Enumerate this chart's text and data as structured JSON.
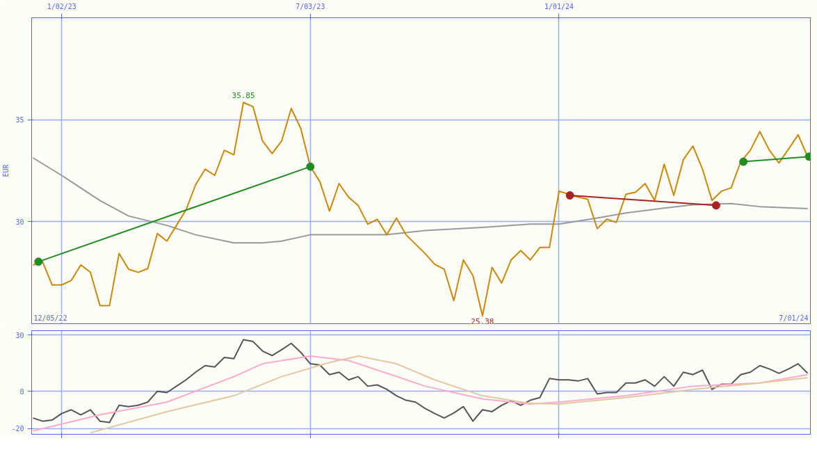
{
  "chart_data": [
    {
      "type": "line",
      "ylabel": "EUR",
      "xlim": [
        "2022-12-11",
        "2024-07-03"
      ],
      "ylim": [
        25,
        40
      ],
      "yticks": [
        35,
        30
      ],
      "xticks": [
        {
          "value": "2023-01-02",
          "label": "1/02/23"
        },
        {
          "value": "2023-07-03",
          "label": "7/03/23"
        },
        {
          "value": "2024-01-01",
          "label": "1/01/24"
        }
      ],
      "grid": true,
      "line_style": "solid",
      "x": [
        "2022-12-12",
        "2022-12-19",
        "2022-12-26",
        "2023-01-02",
        "2023-01-09",
        "2023-01-16",
        "2023-01-23",
        "2023-01-30",
        "2023-02-06",
        "2023-02-13",
        "2023-02-20",
        "2023-02-27",
        "2023-03-06",
        "2023-03-13",
        "2023-03-20",
        "2023-03-27",
        "2023-04-03",
        "2023-04-10",
        "2023-04-17",
        "2023-04-24",
        "2023-05-01",
        "2023-05-08",
        "2023-05-15",
        "2023-05-22",
        "2023-05-29",
        "2023-06-05",
        "2023-06-12",
        "2023-06-19",
        "2023-06-26",
        "2023-07-03",
        "2023-07-10",
        "2023-07-17",
        "2023-07-24",
        "2023-07-31",
        "2023-08-07",
        "2023-08-14",
        "2023-08-21",
        "2023-08-28",
        "2023-09-04",
        "2023-09-11",
        "2023-09-18",
        "2023-09-25",
        "2023-10-02",
        "2023-10-09",
        "2023-10-16",
        "2023-10-23",
        "2023-10-30",
        "2023-11-06",
        "2023-11-13",
        "2023-11-20",
        "2023-11-27",
        "2023-12-04",
        "2023-12-11",
        "2023-12-18",
        "2023-12-25",
        "2024-01-01",
        "2024-01-08",
        "2024-01-15",
        "2024-01-22",
        "2024-01-29",
        "2024-02-05",
        "2024-02-12",
        "2024-02-19",
        "2024-02-26",
        "2024-03-04",
        "2024-03-11",
        "2024-03-18",
        "2024-03-25",
        "2024-04-01",
        "2024-04-08",
        "2024-04-15",
        "2024-04-22",
        "2024-04-29",
        "2024-05-06",
        "2024-05-13",
        "2024-05-20",
        "2024-05-27",
        "2024-06-03",
        "2024-06-10",
        "2024-06-17",
        "2024-06-24",
        "2024-07-01"
      ],
      "annotations": [
        "12/05/22",
        "7/01/24",
        {
          "text": "35.85",
          "x": "2023-05-15",
          "y": 35.85
        },
        {
          "text": "25.38",
          "x": "2023-11-06",
          "y": 25.38
        }
      ],
      "series": [
        {
          "color": "#999999",
          "x": [
            "2022-12-12",
            "2023-01-02",
            "2023-01-30",
            "2023-02-20",
            "2023-03-20",
            "2023-04-10",
            "2023-05-08",
            "2023-05-29",
            "2023-06-12",
            "2023-07-03",
            "2023-07-31",
            "2023-08-28",
            "2023-09-25",
            "2023-11-06",
            "2023-12-11",
            "2024-01-01",
            "2024-01-29",
            "2024-02-19",
            "2024-03-18",
            "2024-04-08",
            "2024-05-06",
            "2024-05-27",
            "2024-07-01"
          ],
          "values": [
            33.13,
            32.27,
            31.04,
            30.28,
            29.82,
            29.36,
            28.96,
            28.96,
            29.05,
            29.36,
            29.36,
            29.36,
            29.57,
            29.72,
            29.88,
            29.88,
            30.18,
            30.43,
            30.67,
            30.83,
            30.89,
            30.74,
            30.64
          ]
        },
        {
          "color": "#cc8800",
          "values": [
            27.88,
            28.04,
            26.9,
            26.9,
            27.12,
            27.88,
            27.52,
            25.89,
            25.89,
            28.44,
            27.67,
            27.52,
            27.7,
            29.42,
            29.05,
            29.82,
            30.58,
            31.81,
            32.58,
            32.27,
            33.5,
            33.28,
            35.85,
            35.64,
            33.96,
            33.34,
            33.96,
            35.55,
            34.57,
            32.7,
            31.96,
            30.52,
            31.87,
            31.2,
            30.8,
            29.88,
            30.12,
            29.36,
            30.18,
            29.36,
            28.9,
            28.44,
            27.91,
            27.67,
            26.13,
            28.13,
            27.36,
            25.38,
            27.76,
            26.99,
            28.13,
            28.59,
            28.13,
            28.74,
            28.74,
            31.5,
            31.35,
            31.2,
            31.1,
            29.66,
            30.12,
            29.97,
            31.35,
            31.44,
            31.87,
            31.04,
            32.82,
            31.29,
            33.04,
            33.71,
            32.58,
            31.04,
            31.5,
            31.66,
            32.94,
            33.5,
            34.42,
            33.5,
            32.88,
            33.56,
            34.26,
            33.19
          ]
        },
        {
          "color": "#228b22",
          "marker": "circle",
          "x": [
            "2022-12-16",
            "2023-07-03"
          ],
          "values": [
            28.04,
            32.7
          ]
        },
        {
          "color": "#aa2222",
          "marker": "circle",
          "x": [
            "2024-01-09",
            "2024-04-25"
          ],
          "values": [
            31.29,
            30.8
          ]
        },
        {
          "color": "#228b22",
          "marker": "circle",
          "x": [
            "2024-05-15",
            "2024-07-02"
          ],
          "values": [
            32.94,
            33.19
          ]
        }
      ]
    },
    {
      "type": "line",
      "xlim": [
        "2022-12-11",
        "2024-07-03"
      ],
      "ylim": [
        -23,
        32.4
      ],
      "yticks": [
        30,
        0,
        -20
      ],
      "xticks": [
        {
          "value": "2023-01-02",
          "label": null
        },
        {
          "value": "2023-07-03",
          "label": null
        },
        {
          "value": "2024-01-01",
          "label": null
        }
      ],
      "grid": true,
      "tick_labels": "y",
      "line_style": "solid",
      "x": [
        "2022-12-12",
        "2022-12-19",
        "2022-12-26",
        "2023-01-02",
        "2023-01-09",
        "2023-01-16",
        "2023-01-23",
        "2023-01-30",
        "2023-02-06",
        "2023-02-13",
        "2023-02-20",
        "2023-02-27",
        "2023-03-06",
        "2023-03-13",
        "2023-03-20",
        "2023-03-27",
        "2023-04-03",
        "2023-04-10",
        "2023-04-17",
        "2023-04-24",
        "2023-05-01",
        "2023-05-08",
        "2023-05-15",
        "2023-05-22",
        "2023-05-29",
        "2023-06-05",
        "2023-06-12",
        "2023-06-19",
        "2023-06-26",
        "2023-07-03",
        "2023-07-10",
        "2023-07-17",
        "2023-07-24",
        "2023-07-31",
        "2023-08-07",
        "2023-08-14",
        "2023-08-21",
        "2023-08-28",
        "2023-09-04",
        "2023-09-11",
        "2023-09-18",
        "2023-09-25",
        "2023-10-02",
        "2023-10-09",
        "2023-10-16",
        "2023-10-23",
        "2023-10-30",
        "2023-11-06",
        "2023-11-13",
        "2023-11-20",
        "2023-11-27",
        "2023-12-04",
        "2023-12-11",
        "2023-12-18",
        "2023-12-25",
        "2024-01-01",
        "2024-01-08",
        "2024-01-15",
        "2024-01-22",
        "2024-01-29",
        "2024-02-05",
        "2024-02-12",
        "2024-02-19",
        "2024-02-26",
        "2024-03-04",
        "2024-03-11",
        "2024-03-18",
        "2024-03-25",
        "2024-04-01",
        "2024-04-08",
        "2024-04-15",
        "2024-04-22",
        "2024-04-29",
        "2024-05-06",
        "2024-05-13",
        "2024-05-20",
        "2024-05-27",
        "2024-06-03",
        "2024-06-10",
        "2024-06-17",
        "2024-06-24",
        "2024-07-01"
      ],
      "series": [
        {
          "color": "#555555",
          "values": [
            -14.3,
            -16.0,
            -15.4,
            -11.9,
            -9.9,
            -12.6,
            -9.9,
            -16.0,
            -16.7,
            -7.5,
            -8.2,
            -7.5,
            -5.8,
            0,
            -0.7,
            2.7,
            6.1,
            10.2,
            13.7,
            13.0,
            18.1,
            17.4,
            27.6,
            26.6,
            21.5,
            19.1,
            22.2,
            25.6,
            20.8,
            14.7,
            14.0,
            8.9,
            10.2,
            6.1,
            7.8,
            2.7,
            3.4,
            1.0,
            -2.4,
            -4.8,
            -5.8,
            -9.2,
            -11.9,
            -14.3,
            -11.6,
            -8.2,
            -16.0,
            -9.9,
            -10.9,
            -7.5,
            -5.1,
            -7.5,
            -4.8,
            -3.4,
            6.8,
            6.1,
            6.1,
            5.5,
            6.8,
            -1.4,
            -0.7,
            -0.7,
            4.4,
            4.4,
            6.1,
            2.7,
            7.8,
            2.7,
            10.2,
            8.9,
            11.3,
            1.0,
            3.8,
            3.8,
            8.9,
            10.2,
            13.7,
            11.9,
            9.6,
            11.9,
            14.7,
            9.6
          ]
        },
        {
          "color": "#ffaacc",
          "x": [
            "2022-12-12",
            "2023-01-30",
            "2023-03-20",
            "2023-05-08",
            "2023-05-29",
            "2023-07-03",
            "2023-07-31",
            "2023-08-28",
            "2023-09-25",
            "2023-11-06",
            "2023-12-11",
            "2024-01-01",
            "2024-02-19",
            "2024-04-08",
            "2024-05-27",
            "2024-07-01"
          ],
          "values": [
            -21.2,
            -12.6,
            -5.8,
            7.8,
            14.7,
            18.8,
            16.4,
            9.6,
            2.7,
            -4.1,
            -6.8,
            -5.8,
            -2.4,
            2.7,
            4.4,
            8.9
          ]
        },
        {
          "color": "#e0c8a0",
          "x": [
            "2023-01-23",
            "2023-03-20",
            "2023-05-08",
            "2023-06-12",
            "2023-07-17",
            "2023-08-07",
            "2023-09-04",
            "2023-10-02",
            "2023-11-06",
            "2023-12-11",
            "2024-01-01",
            "2024-02-19",
            "2024-04-08",
            "2024-05-27",
            "2024-07-01"
          ],
          "values": [
            -22.2,
            -10.9,
            -2.4,
            7.8,
            15.4,
            18.8,
            14.7,
            6.1,
            -2.4,
            -6.5,
            -6.8,
            -3.4,
            1.0,
            4.4,
            7.2
          ]
        }
      ]
    }
  ]
}
